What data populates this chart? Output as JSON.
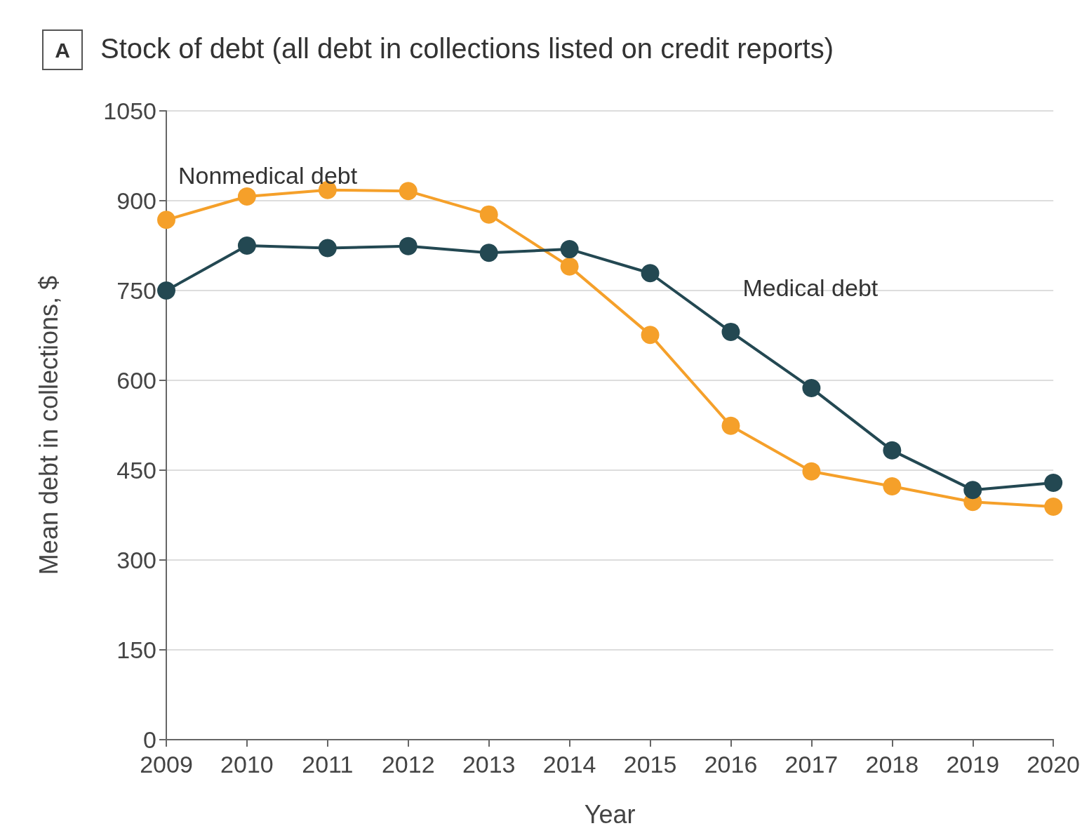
{
  "chart_data": {
    "type": "line",
    "title": "Stock of debt (all debt in collections listed on credit reports)",
    "annotations": [
      "A"
    ],
    "xlabel": "Year",
    "ylabel": "Mean debt in collections, $",
    "categories": [
      "2009",
      "2010",
      "2011",
      "2012",
      "2013",
      "2014",
      "2015",
      "2016",
      "2017",
      "2018",
      "2019",
      "2020"
    ],
    "series": [
      {
        "name": "Nonmedical debt",
        "color": "#f5a02a",
        "values": [
          868,
          907,
          918,
          916,
          877,
          790,
          676,
          524,
          448,
          423,
          397,
          389
        ]
      },
      {
        "name": "Medical debt",
        "color": "#234852",
        "values": [
          750,
          825,
          821,
          824,
          813,
          819,
          779,
          681,
          587,
          483,
          417,
          429
        ]
      }
    ],
    "ylim": [
      0,
      1050
    ],
    "yticks": [
      0,
      150,
      300,
      450,
      600,
      750,
      900,
      1050
    ],
    "grid": "y",
    "legend": false,
    "marker": "circle",
    "line_style": "solid"
  }
}
